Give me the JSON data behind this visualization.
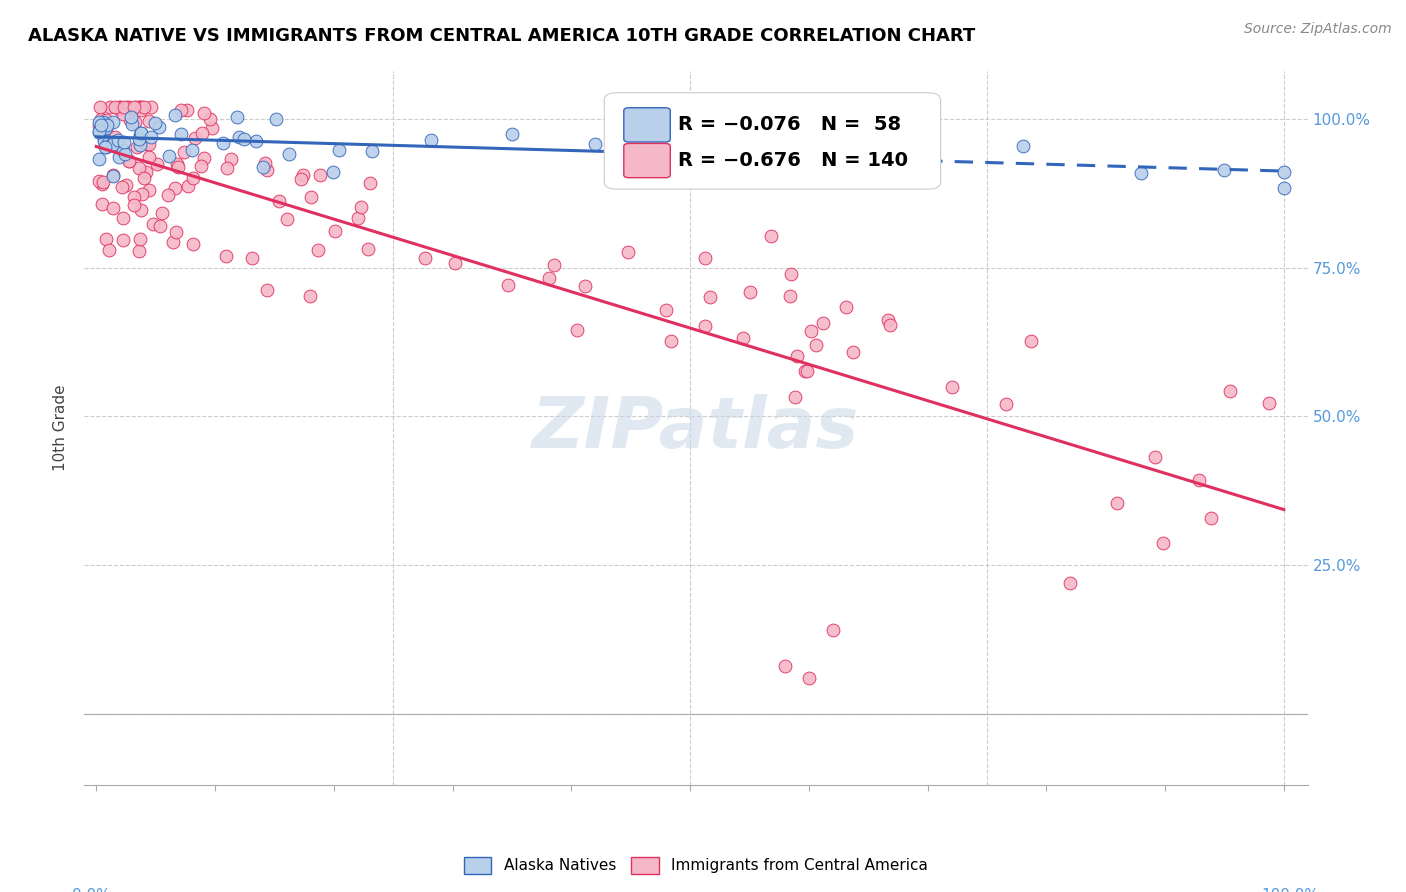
{
  "title": "ALASKA NATIVE VS IMMIGRANTS FROM CENTRAL AMERICA 10TH GRADE CORRELATION CHART",
  "source": "Source: ZipAtlas.com",
  "ylabel": "10th Grade",
  "blue_R": -0.076,
  "blue_N": 58,
  "pink_R": -0.676,
  "pink_N": 140,
  "blue_color": "#b8d0ea",
  "pink_color": "#f5b8c8",
  "blue_line_color": "#3366bb",
  "pink_line_color": "#e03060",
  "ytick_color": "#5599dd",
  "xtick_label_color": "#5599dd",
  "grid_color": "#cccccc",
  "watermark_color": "#c8d8e8",
  "blue_seed": 42,
  "pink_seed": 7,
  "legend_fontsize": 14,
  "title_fontsize": 13,
  "source_fontsize": 10,
  "ylabel_fontsize": 11,
  "ytick_fontsize": 11,
  "xtick_label_fontsize": 11
}
